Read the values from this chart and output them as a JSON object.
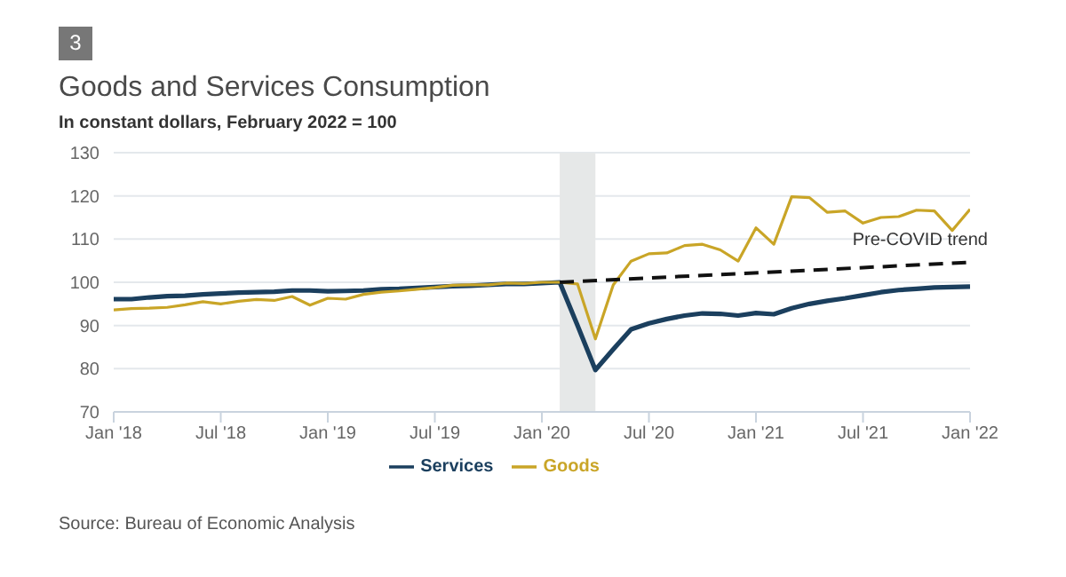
{
  "chart_data": {
    "type": "line",
    "title": "Goods and Services Consumption",
    "subtitle": "In constant dollars, February 2022 = 100",
    "annotations": [
      "3",
      "Source: Bureau of Economic Analysis"
    ],
    "x": [
      "2018-01",
      "2018-02",
      "2018-03",
      "2018-04",
      "2018-05",
      "2018-06",
      "2018-07",
      "2018-08",
      "2018-09",
      "2018-10",
      "2018-11",
      "2018-12",
      "2019-01",
      "2019-02",
      "2019-03",
      "2019-04",
      "2019-05",
      "2019-06",
      "2019-07",
      "2019-08",
      "2019-09",
      "2019-10",
      "2019-11",
      "2019-12",
      "2020-01",
      "2020-02",
      "2020-03",
      "2020-04",
      "2020-05",
      "2020-06",
      "2020-07",
      "2020-08",
      "2020-09",
      "2020-10",
      "2020-11",
      "2020-12",
      "2021-01",
      "2021-02",
      "2021-03",
      "2021-04",
      "2021-05",
      "2021-06",
      "2021-07",
      "2021-08",
      "2021-09",
      "2021-10",
      "2021-11",
      "2021-12",
      "2022-01"
    ],
    "series": [
      {
        "name": "Services",
        "color": "#1b3f5e",
        "values": [
          96.1,
          96.1,
          96.5,
          96.8,
          96.9,
          97.2,
          97.4,
          97.6,
          97.7,
          97.8,
          98.1,
          98.1,
          97.9,
          98,
          98.1,
          98.4,
          98.5,
          98.7,
          98.9,
          99.1,
          99.2,
          99.4,
          99.6,
          99.6,
          99.8,
          100,
          90,
          79.7,
          84.5,
          89.1,
          90.5,
          91.5,
          92.3,
          92.8,
          92.7,
          92.3,
          92.9,
          92.6,
          94,
          95,
          95.7,
          96.3,
          97,
          97.7,
          98.2,
          98.5,
          98.8,
          98.9,
          99
        ]
      },
      {
        "name": "Goods",
        "color": "#c9a527",
        "values": [
          93.6,
          93.9,
          94,
          94.2,
          94.8,
          95.5,
          95,
          95.6,
          96,
          95.8,
          96.7,
          94.7,
          96.3,
          96.1,
          97.2,
          97.7,
          98,
          98.4,
          98.8,
          99.3,
          99.4,
          99.4,
          99.8,
          99.7,
          100,
          100,
          99.6,
          86.9,
          99.4,
          104.9,
          106.6,
          106.8,
          108.5,
          108.8,
          107.5,
          104.9,
          112.6,
          108.8,
          119.8,
          119.6,
          116.2,
          116.5,
          113.7,
          115,
          115.2,
          116.7,
          116.5,
          112,
          116.9
        ]
      },
      {
        "name": "Pre-COVID trend",
        "type": "line",
        "line_style": "dashed",
        "color": "#111111",
        "x": [
          "2020-02",
          "2022-01"
        ],
        "values": [
          100,
          104.6
        ]
      }
    ],
    "bands": [
      {
        "axis": "x",
        "from": "2020-02",
        "to": "2020-04",
        "color": "#e6e8e8"
      }
    ],
    "xlim": [
      "2018-01",
      "2022-01"
    ],
    "xticks": [
      {
        "value": "2018-01",
        "label": "Jan '18"
      },
      {
        "value": "2018-07",
        "label": "Jul '18"
      },
      {
        "value": "2019-01",
        "label": "Jan '19"
      },
      {
        "value": "2019-07",
        "label": "Jul '19"
      },
      {
        "value": "2020-01",
        "label": "Jan '20"
      },
      {
        "value": "2020-07",
        "label": "Jul '20"
      },
      {
        "value": "2021-01",
        "label": "Jan '21"
      },
      {
        "value": "2021-07",
        "label": "Jul '21"
      },
      {
        "value": "2022-01",
        "label": "Jan '22"
      }
    ],
    "ylim": [
      70,
      130
    ],
    "yticks": [
      70,
      80,
      90,
      100,
      110,
      120,
      130
    ],
    "grid": "y",
    "legend": "bottom",
    "marker": "none",
    "line_style": "solid"
  }
}
